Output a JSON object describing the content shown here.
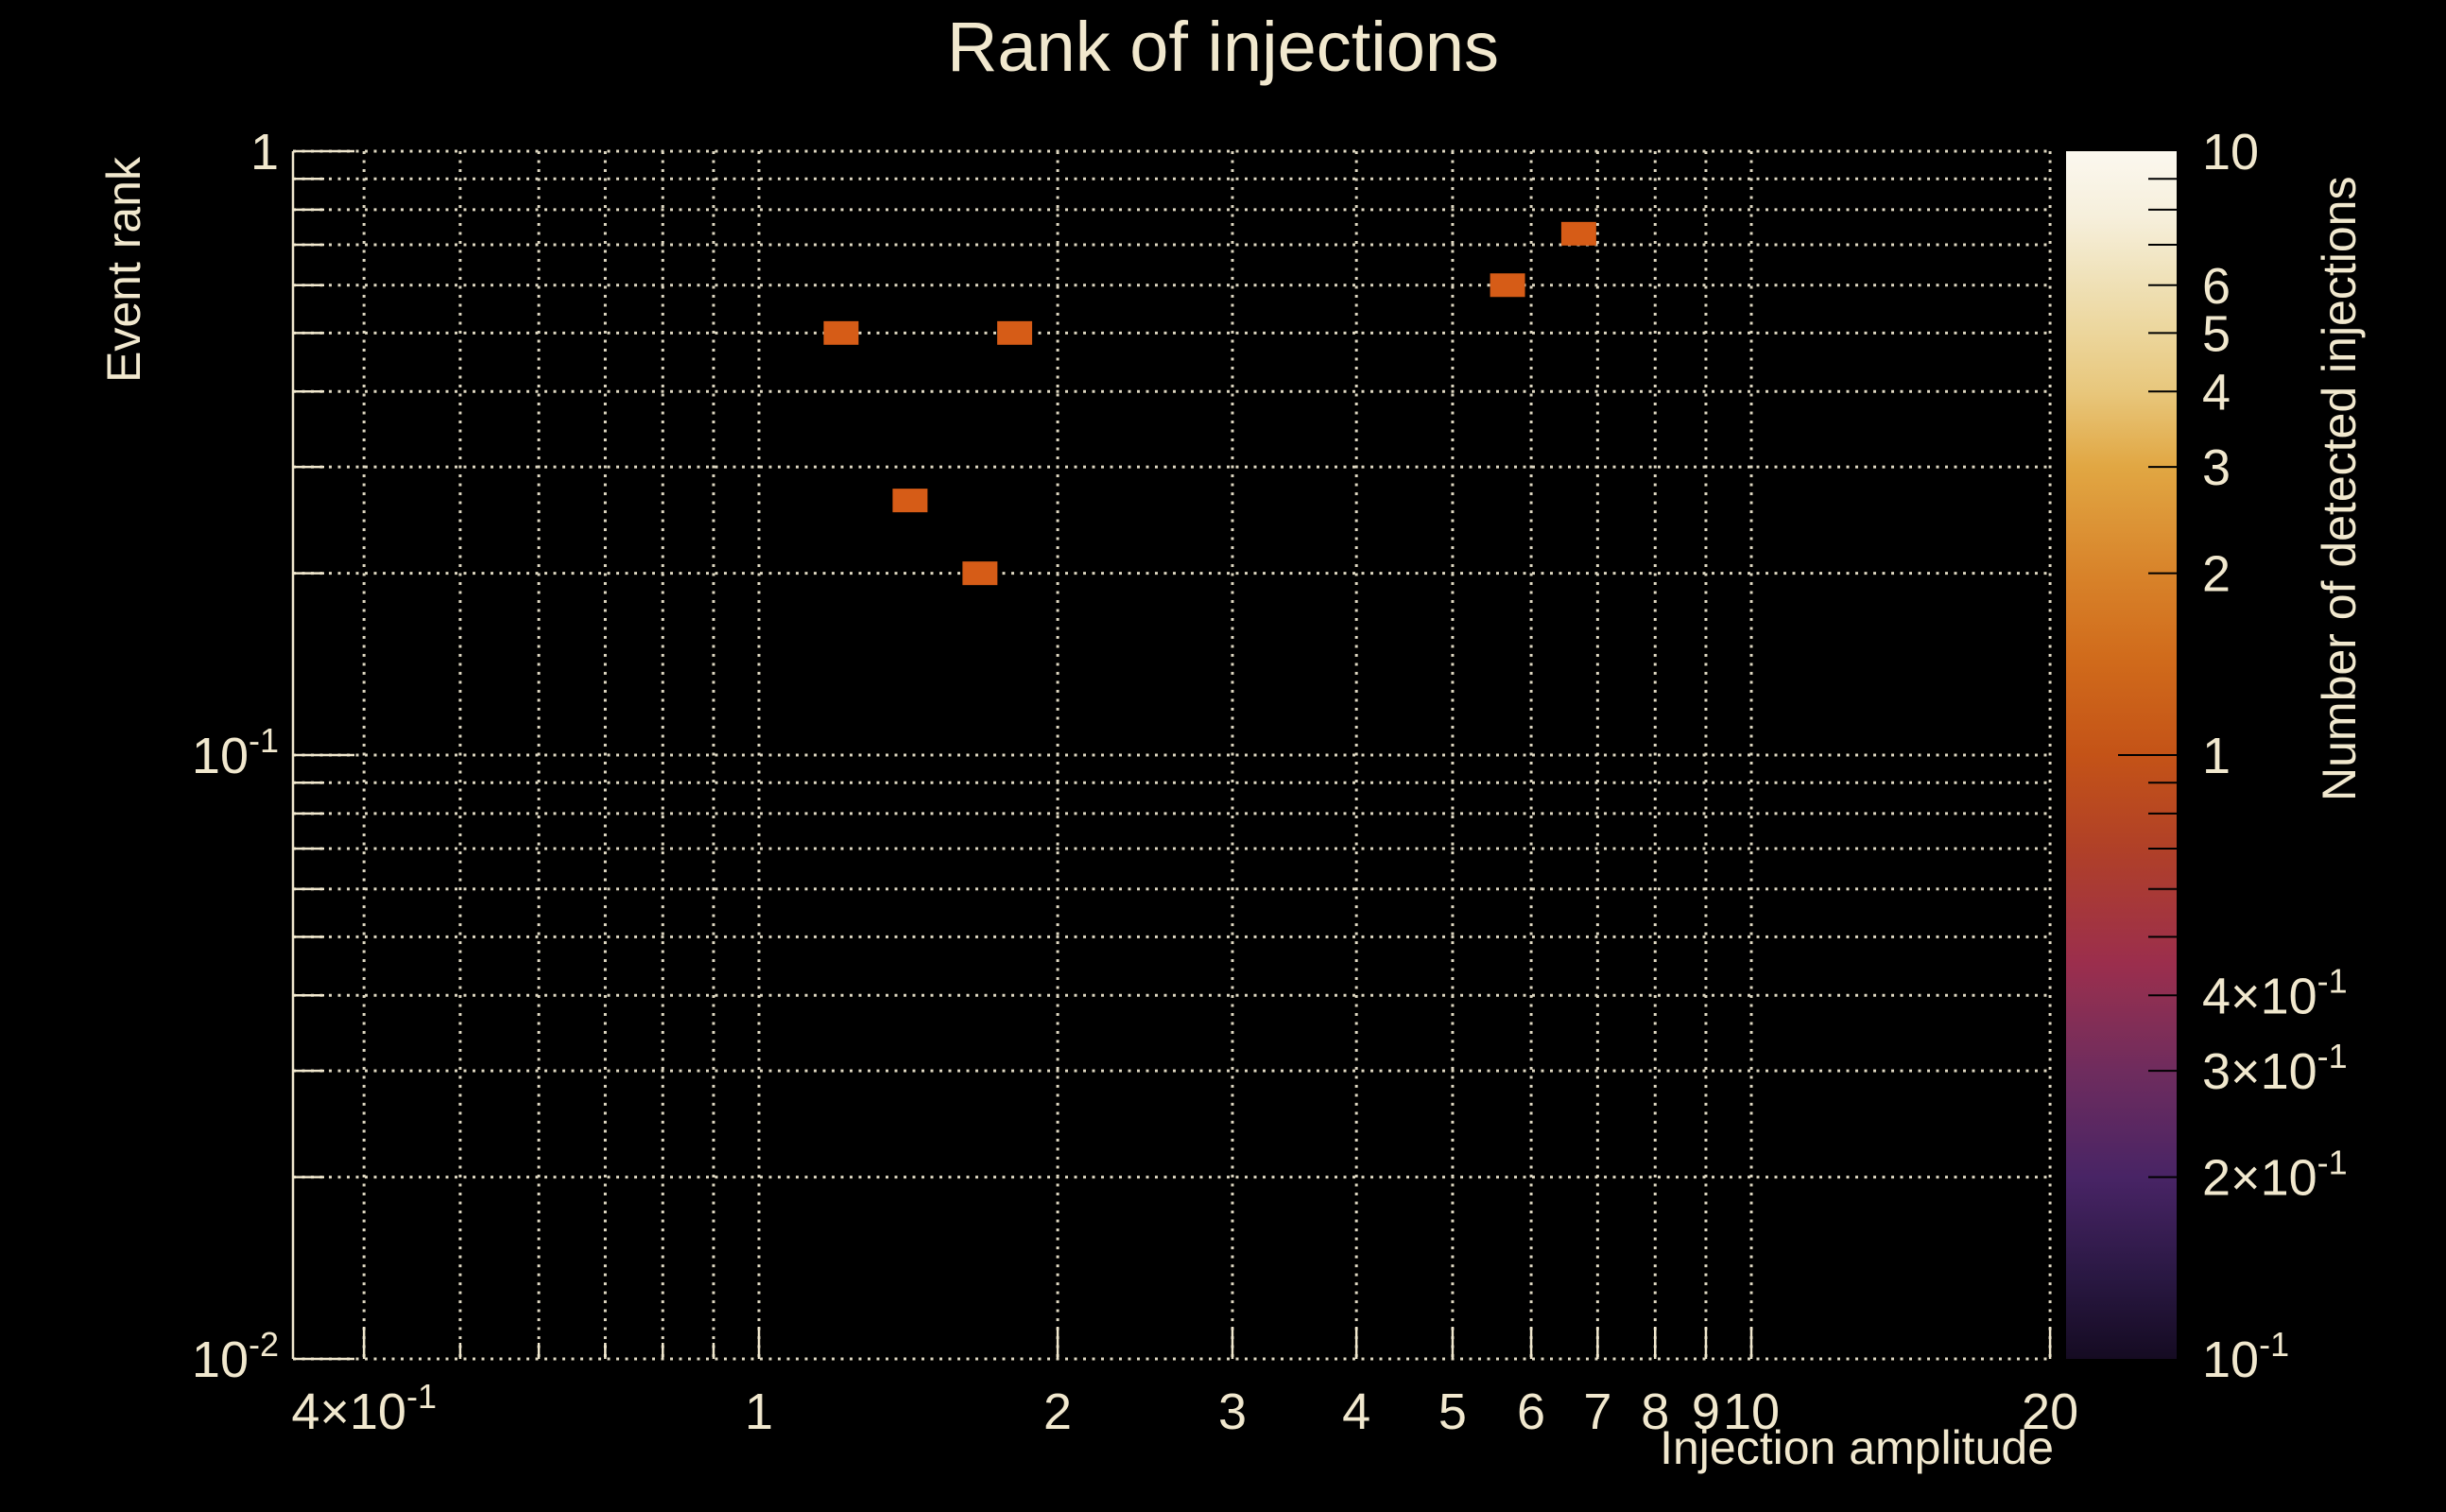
{
  "title": "Rank of injections",
  "colors": {
    "background": "#000000",
    "text": "#f1e8ce",
    "grid": "#ded7c1",
    "axis": "#f1e8ce",
    "point_fill": "#d65c17",
    "colorbar_tick": "#000000"
  },
  "chart_data": {
    "type": "heatmap",
    "title": "Rank of injections",
    "xlabel": "Injection amplitude",
    "ylabel": "Event rank",
    "colorbar_label": "Number of detected injections",
    "xscale": "log",
    "yscale": "log",
    "zscale": "log",
    "xlim": [
      0.339,
      20
    ],
    "ylim": [
      0.01,
      1
    ],
    "zlim": [
      0.1,
      10
    ],
    "grid": true,
    "legend_position": "right-colorbar",
    "x_major_ticks": [
      0.4,
      1,
      2,
      3,
      4,
      5,
      6,
      7,
      8,
      9,
      10,
      20
    ],
    "x_major_labels": [
      "4×10^{-1}",
      "1",
      "2",
      "3",
      "4",
      "5",
      "6",
      "7",
      "8",
      "9",
      "10",
      "20"
    ],
    "x_minor_ticks": [
      0.5,
      0.6,
      0.7,
      0.8,
      0.9
    ],
    "y_major_ticks": [
      1,
      0.1,
      0.01
    ],
    "y_major_labels": [
      "1",
      "10^{-1}",
      "10^{-2}"
    ],
    "y_minor_ticks": [
      0.9,
      0.8,
      0.7,
      0.6,
      0.5,
      0.4,
      0.3,
      0.2,
      0.09,
      0.08,
      0.07,
      0.06,
      0.05,
      0.04,
      0.03,
      0.02
    ],
    "points": [
      {
        "x": 1.21,
        "y": 0.5,
        "count": 1
      },
      {
        "x": 1.81,
        "y": 0.5,
        "count": 1
      },
      {
        "x": 1.42,
        "y": 0.264,
        "count": 1
      },
      {
        "x": 1.67,
        "y": 0.2,
        "count": 1
      },
      {
        "x": 5.68,
        "y": 0.6,
        "count": 1
      },
      {
        "x": 6.7,
        "y": 0.73,
        "count": 1
      }
    ],
    "bin_size_log10": {
      "x": 0.0352,
      "y": 0.0391
    },
    "colorbar": {
      "labeled_ticks": [
        10,
        6,
        5,
        4,
        3,
        2,
        1,
        0.4,
        0.3,
        0.2,
        0.1
      ],
      "tick_labels": [
        "10",
        "6",
        "5",
        "4",
        "3",
        "2",
        "1",
        "4×10^{-1}",
        "3×10^{-1}",
        "2×10^{-1}",
        "10^{-1}"
      ],
      "minor_ticks": [
        9,
        8,
        7,
        6,
        5,
        4,
        3,
        2,
        0.9,
        0.8,
        0.7,
        0.6,
        0.5,
        0.4,
        0.3,
        0.2
      ],
      "major_ticks": [
        1
      ],
      "gradient": [
        {
          "at": 0.0,
          "color": "#fbf8ef"
        },
        {
          "at": 0.055,
          "color": "#f6efdb"
        },
        {
          "at": 0.111,
          "color": "#efe0b5"
        },
        {
          "at": 0.15,
          "color": "#ecd69c"
        },
        {
          "at": 0.199,
          "color": "#e8c77c"
        },
        {
          "at": 0.261,
          "color": "#e1a743"
        },
        {
          "at": 0.35,
          "color": "#d8832a"
        },
        {
          "at": 0.423,
          "color": "#d06a1b"
        },
        {
          "at": 0.5,
          "color": "#c45317"
        },
        {
          "at": 0.579,
          "color": "#b04028"
        },
        {
          "at": 0.673,
          "color": "#9b2e4d"
        },
        {
          "at": 0.699,
          "color": "#8e2f52"
        },
        {
          "at": 0.763,
          "color": "#6e2c5e"
        },
        {
          "at": 0.85,
          "color": "#482465"
        },
        {
          "at": 0.931,
          "color": "#2a1843"
        },
        {
          "at": 1.0,
          "color": "#150b22"
        }
      ]
    }
  }
}
